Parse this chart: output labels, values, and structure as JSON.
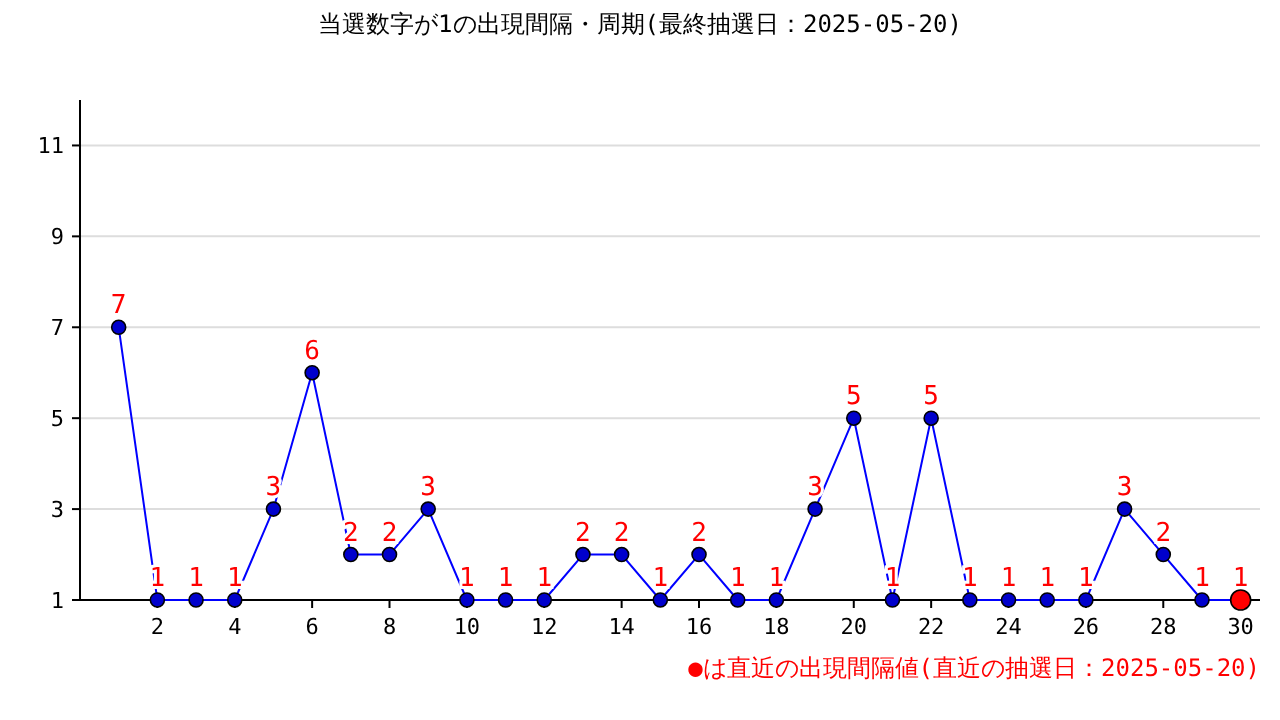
{
  "chart_data": {
    "type": "line",
    "title": "当選数字が1の出現間隔・周期(最終抽選日：2025-05-20)",
    "x": [
      1,
      2,
      3,
      4,
      5,
      6,
      7,
      8,
      9,
      10,
      11,
      12,
      13,
      14,
      15,
      16,
      17,
      18,
      19,
      20,
      21,
      22,
      23,
      24,
      25,
      26,
      27,
      28,
      29,
      30
    ],
    "series": [
      {
        "color": "#0000ff",
        "values": [
          7,
          1,
          1,
          1,
          3,
          6,
          2,
          2,
          3,
          1,
          1,
          1,
          2,
          2,
          1,
          2,
          1,
          1,
          3,
          5,
          1,
          5,
          1,
          1,
          1,
          1,
          3,
          2,
          1,
          1
        ],
        "colors": [
          "#0000cc",
          "#0000cc",
          "#0000cc",
          "#0000cc",
          "#0000cc",
          "#0000cc",
          "#0000cc",
          "#0000cc",
          "#0000cc",
          "#0000cc",
          "#0000cc",
          "#0000cc",
          "#0000cc",
          "#0000cc",
          "#0000cc",
          "#0000cc",
          "#0000cc",
          "#0000cc",
          "#0000cc",
          "#0000cc",
          "#0000cc",
          "#0000cc",
          "#0000cc",
          "#0000cc",
          "#0000cc",
          "#0000cc",
          "#0000cc",
          "#0000cc",
          "#0000cc",
          "#ff0000"
        ]
      }
    ],
    "xlim": [
      0,
      30.5
    ],
    "ylim": [
      1,
      12
    ],
    "xticks": [
      2,
      4,
      6,
      8,
      10,
      12,
      14,
      16,
      18,
      20,
      22,
      24,
      26,
      28,
      30
    ],
    "yticks": [
      1,
      3,
      5,
      7,
      9,
      11
    ],
    "grid": "y",
    "marker": "circle",
    "line_style": "solid",
    "data_labels": true,
    "annotations": [
      "●は直近の出現間隔値(直近の抽選日：2025-05-20)"
    ]
  }
}
